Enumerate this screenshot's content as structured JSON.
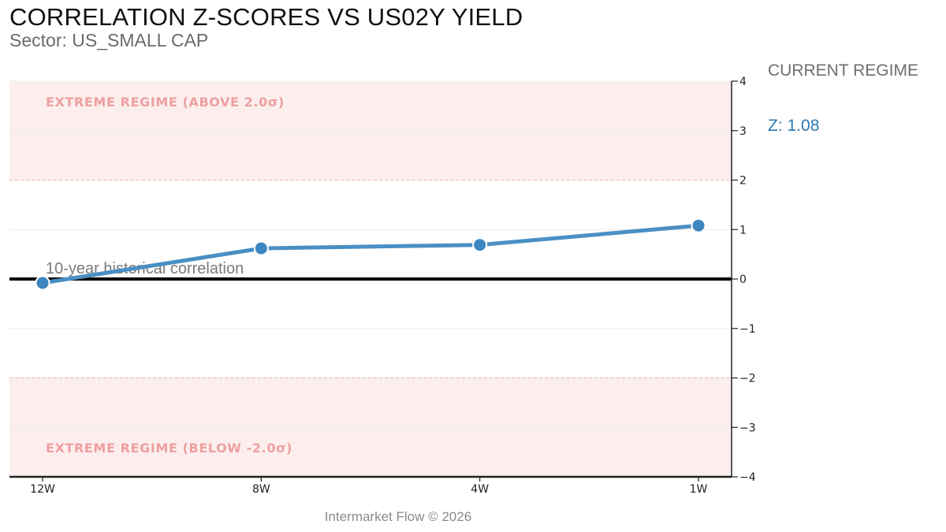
{
  "header": {
    "title": "CORRELATION Z-SCORES VS US02Y YIELD",
    "subtitle": "Sector: US_SMALL CAP"
  },
  "side_panel": {
    "heading": "CURRENT REGIME",
    "z_label": "Z: 1.08"
  },
  "footer": {
    "credit": "Intermarket Flow © 2026"
  },
  "colors": {
    "line": "#4a8fc4",
    "marker": "#3d86c0",
    "zero_line": "#000000",
    "extreme_band": "#fdeeee",
    "extreme_text": "#ee9f9f",
    "threshold_line": "#e8b8b8",
    "axis": "#222222"
  },
  "chart_data": {
    "type": "line",
    "categories": [
      "12W",
      "8W",
      "4W",
      "1W"
    ],
    "series": [
      {
        "values": [
          -0.08,
          0.62,
          0.69,
          1.08
        ]
      }
    ],
    "ylim": [
      -4,
      4
    ],
    "y_ticks": [
      "4",
      "3",
      "2",
      "1",
      "0",
      "−1",
      "−2",
      "−3",
      "−4"
    ],
    "y_tick_values": [
      4,
      3,
      2,
      1,
      0,
      -1,
      -2,
      -3,
      -4
    ],
    "y_axis_side": "right",
    "grid": true,
    "reference_line": {
      "value": 0,
      "label": "10-year historical correlation"
    },
    "bands": [
      {
        "from": 2,
        "to": 4,
        "label": "EXTREME REGIME (ABOVE 2.0σ)"
      },
      {
        "from": -4,
        "to": -2,
        "label": "EXTREME REGIME (BELOW -2.0σ)"
      }
    ]
  }
}
